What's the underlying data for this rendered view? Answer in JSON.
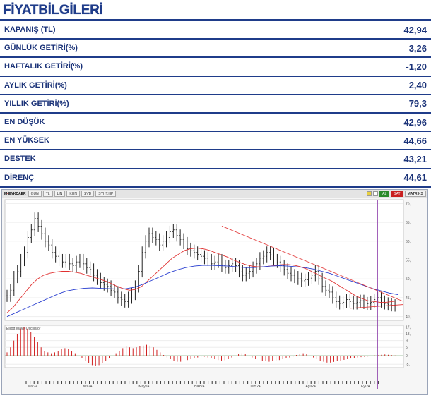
{
  "header": {
    "title": "FİYATBİLGİLERİ"
  },
  "stats": [
    {
      "label": "KAPANIŞ  (TL)",
      "value": "42,94"
    },
    {
      "label": "GÜNLÜK GETİRİ(%)",
      "value": "3,26"
    },
    {
      "label": "HAFTALIK GETİRİ(%)",
      "value": "-1,20"
    },
    {
      "label": "AYLIK GETİRİ(%)",
      "value": "2,40"
    },
    {
      "label": "YILLIK  GETİRİ(%)",
      "value": "79,3"
    },
    {
      "label": "EN DÜŞÜK",
      "value": "42,96"
    },
    {
      "label": "EN YÜKSEK",
      "value": "44,66"
    },
    {
      "label": "DESTEK",
      "value": "43,21"
    },
    {
      "label": "DİRENÇ",
      "value": "44,61"
    }
  ],
  "toolbar": {
    "symbol_prefix": "M",
    "symbol_mark": "•",
    "symbol": "ENKCAER",
    "buttons": [
      "GUN",
      "TL",
      "LIN",
      "KHN",
      "SVD",
      "SYHT.HP"
    ],
    "buy": "AL",
    "sell": "SAT",
    "brand": "MATRİKS"
  },
  "colors": {
    "brand": "#1f3c8a",
    "price_bars": "#222222",
    "ma_short": "#e03030",
    "ma_long": "#2a3fd0",
    "trendline": "#e03030",
    "oscillator": "#d02020",
    "cursor": "#8a3aa8"
  },
  "chart_data": [
    {
      "type": "line",
      "title": "",
      "y_ticks": [
        "70,",
        "65,",
        "60,",
        "55,",
        "50,",
        "45,",
        "40,"
      ],
      "ylim": [
        39,
        71
      ],
      "x_ticks": [
        "Mar24",
        "Nis24",
        "May24",
        "Haz24",
        "Tem24",
        "Ağu24",
        "Eyl24"
      ],
      "series": [
        {
          "role": "price_ohlc_close",
          "values": [
            45.5,
            47.0,
            50.5,
            52.0,
            55.0,
            57.0,
            61.0,
            63.0,
            66.0,
            64.0,
            62.0,
            60.0,
            59.0,
            57.0,
            56.0,
            55.0,
            54.5,
            55.0,
            54.0,
            53.5,
            54.5,
            55.0,
            54.0,
            53.0,
            52.5,
            51.0,
            50.0,
            49.0,
            48.5,
            48.0,
            47.0,
            46.5,
            45.0,
            44.5,
            44.0,
            45.0,
            46.0,
            48.0,
            52.0,
            57.0,
            60.0,
            62.0,
            61.0,
            60.5,
            59.0,
            60.0,
            61.0,
            62.5,
            63.0,
            61.5,
            60.5,
            59.5,
            58.0,
            57.5,
            57.0,
            56.5,
            56.0,
            55.5,
            55.0,
            54.0,
            54.5,
            55.0,
            53.5,
            53.0,
            53.5,
            54.0,
            53.5,
            52.0,
            51.0,
            51.5,
            52.0,
            53.0,
            54.0,
            55.5,
            56.0,
            57.0,
            56.5,
            55.0,
            54.5,
            53.5,
            52.5,
            51.5,
            51.0,
            50.5,
            50.0,
            49.5,
            49.8,
            50.2,
            51.0,
            52.0,
            50.0,
            48.0,
            47.0,
            46.5,
            45.0,
            44.0,
            43.5,
            43.8,
            44.5,
            44.0,
            43.5,
            43.8,
            44.2,
            43.6,
            43.4,
            43.8,
            44.5,
            45.0,
            44.0,
            43.5,
            43.2,
            43.0,
            42.94
          ]
        },
        {
          "name": "",
          "role": "moving_average_short",
          "values": [
            41.0,
            42.5,
            44.5,
            46.5,
            48.5,
            50.0,
            51.0,
            51.5,
            51.8,
            52.0,
            52.0,
            51.8,
            51.5,
            51.0,
            50.5,
            50.0,
            49.5,
            48.8,
            48.0,
            47.4,
            47.0,
            47.2,
            48.0,
            49.5,
            51.0,
            52.5,
            54.0,
            55.5,
            56.5,
            57.5,
            58.0,
            58.2,
            58.0,
            57.6,
            57.0,
            56.4,
            55.8,
            55.0,
            54.4,
            53.8,
            53.4,
            53.2,
            53.2,
            53.4,
            53.6,
            53.8,
            53.8,
            53.6,
            53.2,
            52.6,
            51.8,
            51.0,
            50.2,
            49.5,
            48.5,
            47.5,
            46.5,
            45.5,
            44.8,
            44.2,
            44.0,
            43.8,
            43.8,
            44.0,
            44.2
          ]
        },
        {
          "name": "",
          "role": "moving_average_long",
          "values": [
            40.0,
            41.0,
            42.0,
            43.0,
            44.0,
            45.0,
            46.0,
            46.8,
            47.2,
            47.5,
            47.6,
            47.5,
            47.4,
            47.3,
            47.4,
            47.8,
            48.6,
            49.6,
            50.6,
            51.6,
            52.4,
            53.0,
            53.4,
            53.6,
            53.6,
            53.5,
            53.4,
            53.2,
            53.0,
            53.0,
            53.2,
            53.4,
            53.5,
            53.4,
            53.2,
            53.0,
            52.6,
            52.0,
            51.4,
            50.6,
            49.8,
            49.0,
            48.2,
            47.4,
            46.8,
            46.2,
            45.8
          ]
        }
      ],
      "trendlines": [
        {
          "label": "upper",
          "from": [
            62,
            64.0
          ],
          "to": [
            115,
            44.0
          ]
        },
        {
          "label": "lower",
          "from": [
            99,
            42.2
          ],
          "to": [
            115,
            43.2
          ]
        }
      ]
    },
    {
      "type": "bar",
      "title": "Elliott Wave Oscillator",
      "y_ticks": [
        "17,",
        "13,",
        "9,",
        "5,",
        "0,",
        "-5,"
      ],
      "ylim": [
        -7,
        18
      ],
      "values": [
        2,
        5,
        9,
        13,
        16,
        17,
        16,
        14,
        11,
        8,
        5,
        3,
        2,
        1.5,
        2,
        3,
        4,
        4.5,
        4,
        3,
        1.5,
        0,
        -1.5,
        -3,
        -4.5,
        -5.5,
        -6,
        -5.5,
        -4.5,
        -3,
        -1.5,
        0,
        1.5,
        3,
        4.5,
        5.5,
        5,
        4.5,
        5,
        5.5,
        6,
        6.5,
        6,
        5,
        3.5,
        2,
        0.5,
        -1,
        -2,
        -3,
        -3.5,
        -3.5,
        -3,
        -2.5,
        -2,
        -1.5,
        -1,
        -0.5,
        -0.5,
        -1,
        -1.5,
        -2,
        -2.5,
        -2.8,
        -2.6,
        -2,
        -1,
        0,
        1,
        1.5,
        1,
        0,
        -1,
        -2,
        -2.5,
        -3,
        -3.2,
        -3.5,
        -3.2,
        -2.8,
        -2.5,
        -2,
        -1.5,
        -1,
        -0.5,
        0.5,
        1,
        1.5,
        1,
        0,
        -1,
        -2,
        -3,
        -3.5,
        -4,
        -4,
        -3.6,
        -3.2,
        -2.8,
        -2.4,
        -2,
        -1.6,
        -1.2,
        -1,
        -0.8,
        -0.6,
        -0.4,
        -0.2,
        0.2,
        0.4,
        0.6,
        0.8,
        0.6,
        0.4,
        0.2
      ]
    }
  ]
}
